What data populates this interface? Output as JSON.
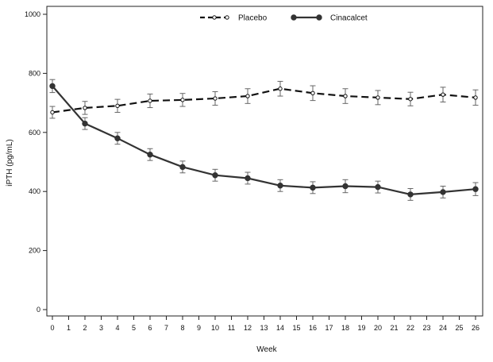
{
  "chart_data": {
    "type": "line",
    "title": "",
    "xlabel": "Week",
    "ylabel": "iPTH (pg/mL)",
    "xlim": [
      0,
      26
    ],
    "ylim": [
      0,
      1000
    ],
    "x_ticks": [
      0,
      1,
      2,
      3,
      4,
      5,
      6,
      7,
      8,
      9,
      10,
      11,
      12,
      13,
      14,
      15,
      16,
      17,
      18,
      19,
      20,
      21,
      22,
      23,
      24,
      25,
      26
    ],
    "y_ticks": [
      0,
      200,
      400,
      600,
      800,
      1000
    ],
    "grid": false,
    "legend": "top-center",
    "series": [
      {
        "name": "Placebo",
        "style": "dashed",
        "marker": "open-circle",
        "color": "#111111",
        "x": [
          0,
          2,
          4,
          6,
          8,
          10,
          12,
          14,
          16,
          18,
          20,
          22,
          24,
          26
        ],
        "y": [
          668,
          683,
          690,
          707,
          710,
          715,
          723,
          748,
          733,
          723,
          718,
          713,
          728,
          718
        ],
        "error": [
          20,
          22,
          22,
          23,
          22,
          23,
          25,
          25,
          25,
          25,
          24,
          23,
          25,
          26
        ]
      },
      {
        "name": "Cinacalcet",
        "style": "solid",
        "marker": "filled-circle",
        "color": "#333333",
        "x": [
          0,
          2,
          4,
          6,
          8,
          10,
          12,
          14,
          16,
          18,
          20,
          22,
          24,
          26
        ],
        "y": [
          757,
          630,
          580,
          525,
          483,
          455,
          445,
          420,
          413,
          418,
          415,
          390,
          398,
          408
        ],
        "error": [
          22,
          20,
          20,
          20,
          20,
          20,
          20,
          20,
          20,
          22,
          20,
          20,
          20,
          22
        ]
      }
    ]
  }
}
